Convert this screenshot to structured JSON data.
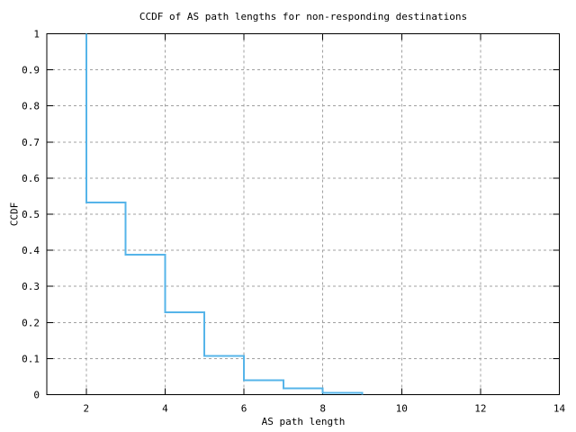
{
  "colors": {
    "background": "#ffffff",
    "border": "#000000",
    "grid": "#a0a0a0",
    "text": "#000000",
    "line": "#56b4e9"
  },
  "chart_data": {
    "type": "line",
    "style": "step-ccdf",
    "title": "CCDF of AS path lengths for non-responding destinations",
    "xlabel": "AS path length",
    "ylabel": "CCDF",
    "xlim": [
      1,
      14
    ],
    "ylim": [
      0,
      1
    ],
    "xticks": [
      2,
      4,
      6,
      8,
      10,
      12,
      14
    ],
    "xtick_labels": [
      "2",
      "4",
      "6",
      "8",
      "10",
      "12",
      "14"
    ],
    "yticks": [
      0,
      0.1,
      0.2,
      0.3,
      0.4,
      0.5,
      0.6,
      0.7,
      0.8,
      0.9,
      1
    ],
    "ytick_labels": [
      "0",
      "0.1",
      "0.2",
      "0.3",
      "0.4",
      "0.5",
      "0.6",
      "0.7",
      "0.8",
      "0.9",
      "1"
    ],
    "grid": true,
    "legend": "none",
    "series": [
      {
        "name": "CCDF of AS path length",
        "color": "#56b4e9",
        "ccdf_plateaus": {
          "interval_start_x": [
            2,
            3,
            4,
            5,
            6,
            7,
            8
          ],
          "values": [
            0.533,
            0.388,
            0.228,
            0.107,
            0.04,
            0.018,
            0.005
          ],
          "start_value": 1.0,
          "end_x": 9
        },
        "points": [
          [
            2,
            1
          ],
          [
            2,
            0.533
          ],
          [
            3,
            0.533
          ],
          [
            3,
            0.388
          ],
          [
            4,
            0.388
          ],
          [
            4,
            0.228
          ],
          [
            5,
            0.228
          ],
          [
            5,
            0.107
          ],
          [
            6,
            0.107
          ],
          [
            6,
            0.04
          ],
          [
            7,
            0.04
          ],
          [
            7,
            0.018
          ],
          [
            8,
            0.018
          ],
          [
            8,
            0.005
          ],
          [
            9,
            0.005
          ],
          [
            9,
            0
          ]
        ]
      }
    ]
  }
}
